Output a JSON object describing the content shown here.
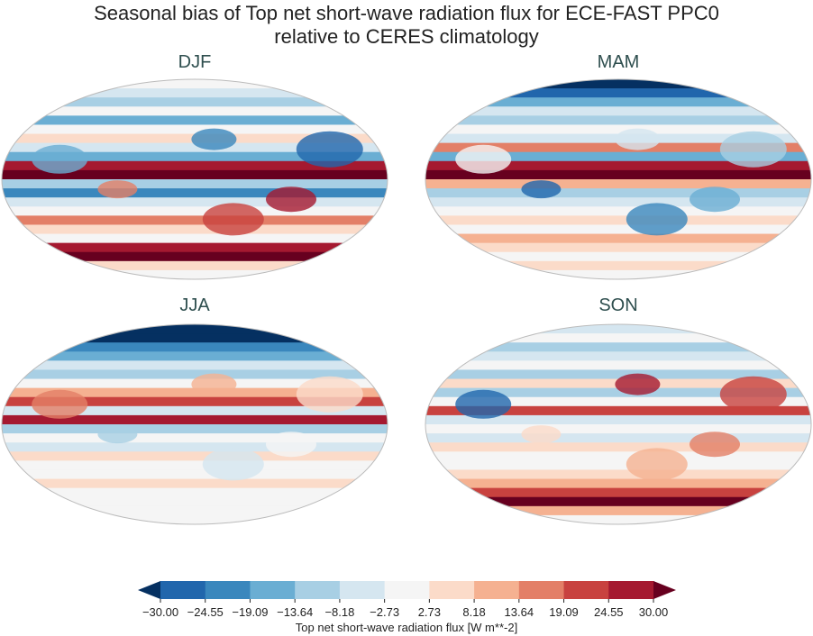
{
  "title_line1": "Seasonal bias of Top net short-wave radiation flux for ECE-FAST PPC0",
  "title_line2": "relative to CERES climatology",
  "panels": [
    {
      "label": "DJF"
    },
    {
      "label": "MAM"
    },
    {
      "label": "JJA"
    },
    {
      "label": "SON"
    }
  ],
  "colorbar": {
    "label": "Top net short-wave radiation flux [W m**-2]",
    "ticks": [
      "−30.00",
      "−24.55",
      "−19.09",
      "−13.64",
      "−8.18",
      "−2.73",
      "2.73",
      "8.18",
      "13.64",
      "19.09",
      "24.55",
      "30.00"
    ],
    "under_color": "#053061",
    "over_color": "#67001f",
    "colors": [
      "#2166ac",
      "#3a87bd",
      "#6aaed3",
      "#a8cfe4",
      "#d5e6f0",
      "#f5f5f5",
      "#fbdbc9",
      "#f5b191",
      "#e37f67",
      "#c8423f",
      "#a51930"
    ],
    "extend": "both"
  }
}
